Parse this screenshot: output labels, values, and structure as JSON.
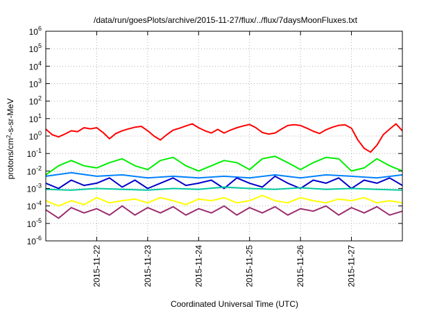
{
  "chart_data": {
    "type": "line",
    "title": "/data/run/goesPlots/archive/2015-11-27/flux/../flux/7daysMoonFluxes.txt",
    "xlabel": "Coordinated Universal Time (UTC)",
    "ylabel": {
      "base": "protons/cm",
      "sup": "2",
      "rest": "-s-sr-MeV"
    },
    "yscale": "log",
    "ylim": [
      1e-06,
      1000000.0
    ],
    "xlim": [
      "2015-11-21T00:00",
      "2015-11-28T00:00"
    ],
    "grid": true,
    "ytick_exponents": [
      -6,
      -5,
      -4,
      -3,
      -2,
      -1,
      0,
      1,
      2,
      3,
      4,
      5,
      6
    ],
    "ytick_base": "10",
    "xticks": [
      {
        "date": "2015-11-22T00:00",
        "label": "2015-11-22"
      },
      {
        "date": "2015-11-23T00:00",
        "label": "2015-11-23"
      },
      {
        "date": "2015-11-24T00:00",
        "label": "2015-11-24"
      },
      {
        "date": "2015-11-25T00:00",
        "label": "2015-11-25"
      },
      {
        "date": "2015-11-26T00:00",
        "label": "2015-11-26"
      },
      {
        "date": "2015-11-27T00:00",
        "label": "2015-11-27"
      }
    ],
    "series": [
      {
        "color": "#ff0000",
        "x": [
          "2015-11-21T00:00",
          "2015-11-21T03:00",
          "2015-11-21T06:00",
          "2015-11-21T09:00",
          "2015-11-21T12:00",
          "2015-11-21T15:00",
          "2015-11-21T18:00",
          "2015-11-21T21:00",
          "2015-11-22T00:00",
          "2015-11-22T03:00",
          "2015-11-22T06:00",
          "2015-11-22T09:00",
          "2015-11-22T12:00",
          "2015-11-22T15:00",
          "2015-11-22T18:00",
          "2015-11-22T21:00",
          "2015-11-23T00:00",
          "2015-11-23T03:00",
          "2015-11-23T06:00",
          "2015-11-23T09:00",
          "2015-11-23T12:00",
          "2015-11-23T15:00",
          "2015-11-23T18:00",
          "2015-11-23T21:00",
          "2015-11-24T00:00",
          "2015-11-24T03:00",
          "2015-11-24T06:00",
          "2015-11-24T09:00",
          "2015-11-24T12:00",
          "2015-11-24T15:00",
          "2015-11-24T18:00",
          "2015-11-24T21:00",
          "2015-11-25T00:00",
          "2015-11-25T03:00",
          "2015-11-25T06:00",
          "2015-11-25T09:00",
          "2015-11-25T12:00",
          "2015-11-25T15:00",
          "2015-11-25T18:00",
          "2015-11-25T21:00",
          "2015-11-26T00:00",
          "2015-11-26T03:00",
          "2015-11-26T06:00",
          "2015-11-26T09:00",
          "2015-11-26T12:00",
          "2015-11-26T15:00",
          "2015-11-26T18:00",
          "2015-11-26T21:00",
          "2015-11-27T00:00",
          "2015-11-27T03:00",
          "2015-11-27T06:00",
          "2015-11-27T09:00",
          "2015-11-27T12:00",
          "2015-11-27T15:00",
          "2015-11-27T18:00",
          "2015-11-27T21:00",
          "2015-11-28T00:00"
        ],
        "values": [
          2.5,
          1.2,
          0.9,
          1.3,
          2.0,
          1.8,
          3.0,
          2.6,
          3.0,
          1.6,
          0.7,
          1.4,
          2.0,
          2.6,
          3.2,
          3.6,
          2.0,
          1.0,
          0.6,
          1.2,
          2.2,
          2.8,
          3.8,
          5.0,
          3.0,
          2.0,
          1.5,
          2.4,
          1.5,
          2.2,
          3.0,
          3.8,
          4.6,
          3.0,
          1.6,
          1.3,
          1.5,
          2.5,
          4.0,
          4.5,
          4.0,
          2.8,
          1.9,
          1.4,
          2.3,
          3.2,
          4.1,
          4.4,
          2.8,
          0.6,
          0.2,
          0.12,
          0.3,
          1.2,
          2.5,
          5.0,
          2.0
        ]
      },
      {
        "color": "#00ee00",
        "x": [
          "2015-11-21T00:00",
          "2015-11-21T06:00",
          "2015-11-21T12:00",
          "2015-11-21T18:00",
          "2015-11-22T00:00",
          "2015-11-22T06:00",
          "2015-11-22T12:00",
          "2015-11-22T18:00",
          "2015-11-23T00:00",
          "2015-11-23T06:00",
          "2015-11-23T12:00",
          "2015-11-23T18:00",
          "2015-11-24T00:00",
          "2015-11-24T06:00",
          "2015-11-24T12:00",
          "2015-11-24T18:00",
          "2015-11-25T00:00",
          "2015-11-25T06:00",
          "2015-11-25T12:00",
          "2015-11-25T18:00",
          "2015-11-26T00:00",
          "2015-11-26T06:00",
          "2015-11-26T12:00",
          "2015-11-26T18:00",
          "2015-11-27T00:00",
          "2015-11-27T06:00",
          "2015-11-27T12:00",
          "2015-11-27T18:00",
          "2015-11-28T00:00"
        ],
        "values": [
          0.006,
          0.02,
          0.04,
          0.02,
          0.015,
          0.03,
          0.05,
          0.02,
          0.012,
          0.04,
          0.06,
          0.02,
          0.01,
          0.02,
          0.04,
          0.03,
          0.012,
          0.05,
          0.07,
          0.03,
          0.012,
          0.03,
          0.06,
          0.05,
          0.01,
          0.015,
          0.05,
          0.02,
          0.01
        ]
      },
      {
        "color": "#0080ff",
        "x": [
          "2015-11-21T00:00",
          "2015-11-21T12:00",
          "2015-11-22T00:00",
          "2015-11-22T12:00",
          "2015-11-23T00:00",
          "2015-11-23T12:00",
          "2015-11-24T00:00",
          "2015-11-24T12:00",
          "2015-11-25T00:00",
          "2015-11-25T12:00",
          "2015-11-26T00:00",
          "2015-11-26T12:00",
          "2015-11-27T00:00",
          "2015-11-27T12:00",
          "2015-11-28T00:00"
        ],
        "values": [
          0.005,
          0.008,
          0.005,
          0.006,
          0.004,
          0.005,
          0.004,
          0.005,
          0.004,
          0.006,
          0.004,
          0.006,
          0.005,
          0.004,
          0.006
        ]
      },
      {
        "color": "#0000cc",
        "x": [
          "2015-11-21T00:00",
          "2015-11-21T06:00",
          "2015-11-21T12:00",
          "2015-11-21T18:00",
          "2015-11-22T00:00",
          "2015-11-22T06:00",
          "2015-11-22T12:00",
          "2015-11-22T18:00",
          "2015-11-23T00:00",
          "2015-11-23T06:00",
          "2015-11-23T12:00",
          "2015-11-23T18:00",
          "2015-11-24T00:00",
          "2015-11-24T06:00",
          "2015-11-24T12:00",
          "2015-11-24T18:00",
          "2015-11-25T00:00",
          "2015-11-25T06:00",
          "2015-11-25T12:00",
          "2015-11-25T18:00",
          "2015-11-26T00:00",
          "2015-11-26T06:00",
          "2015-11-26T12:00",
          "2015-11-26T18:00",
          "2015-11-27T00:00",
          "2015-11-27T06:00",
          "2015-11-27T12:00",
          "2015-11-27T18:00",
          "2015-11-28T00:00"
        ],
        "values": [
          0.002,
          0.001,
          0.003,
          0.0015,
          0.002,
          0.004,
          0.0012,
          0.003,
          0.001,
          0.002,
          0.004,
          0.0015,
          0.002,
          0.003,
          0.001,
          0.004,
          0.002,
          0.0012,
          0.005,
          0.002,
          0.001,
          0.003,
          0.002,
          0.004,
          0.001,
          0.003,
          0.002,
          0.004,
          0.0015
        ]
      },
      {
        "color": "#00c8a0",
        "x": [
          "2015-11-21T00:00",
          "2015-11-21T12:00",
          "2015-11-22T00:00",
          "2015-11-22T12:00",
          "2015-11-23T00:00",
          "2015-11-23T12:00",
          "2015-11-24T00:00",
          "2015-11-24T12:00",
          "2015-11-25T00:00",
          "2015-11-25T12:00",
          "2015-11-26T00:00",
          "2015-11-26T12:00",
          "2015-11-27T00:00",
          "2015-11-27T12:00",
          "2015-11-28T00:00"
        ],
        "values": [
          0.0009,
          0.0008,
          0.001,
          0.0009,
          0.0008,
          0.001,
          0.0009,
          0.0012,
          0.001,
          0.0009,
          0.0011,
          0.0009,
          0.001,
          0.0009,
          0.0008
        ]
      },
      {
        "color": "#ffff00",
        "x": [
          "2015-11-21T00:00",
          "2015-11-21T06:00",
          "2015-11-21T12:00",
          "2015-11-21T18:00",
          "2015-11-22T00:00",
          "2015-11-22T06:00",
          "2015-11-22T12:00",
          "2015-11-22T18:00",
          "2015-11-23T00:00",
          "2015-11-23T06:00",
          "2015-11-23T12:00",
          "2015-11-23T18:00",
          "2015-11-24T00:00",
          "2015-11-24T06:00",
          "2015-11-24T12:00",
          "2015-11-24T18:00",
          "2015-11-25T00:00",
          "2015-11-25T06:00",
          "2015-11-25T12:00",
          "2015-11-25T18:00",
          "2015-11-26T00:00",
          "2015-11-26T06:00",
          "2015-11-26T12:00",
          "2015-11-26T18:00",
          "2015-11-27T00:00",
          "2015-11-27T06:00",
          "2015-11-27T12:00",
          "2015-11-27T18:00",
          "2015-11-28T00:00"
        ],
        "values": [
          0.0002,
          0.0001,
          0.0002,
          0.00012,
          0.0003,
          0.00015,
          0.0002,
          0.00025,
          0.00015,
          0.0003,
          0.0002,
          0.00012,
          0.00025,
          0.0002,
          0.0003,
          0.00015,
          0.0002,
          0.0004,
          0.0002,
          0.00015,
          0.0003,
          0.0002,
          0.00015,
          0.00025,
          0.0002,
          0.0003,
          0.00015,
          0.0002,
          0.00015
        ]
      },
      {
        "color": "#9b2d6e",
        "x": [
          "2015-11-21T00:00",
          "2015-11-21T06:00",
          "2015-11-21T12:00",
          "2015-11-21T18:00",
          "2015-11-22T00:00",
          "2015-11-22T06:00",
          "2015-11-22T12:00",
          "2015-11-22T18:00",
          "2015-11-23T00:00",
          "2015-11-23T06:00",
          "2015-11-23T12:00",
          "2015-11-23T18:00",
          "2015-11-24T00:00",
          "2015-11-24T06:00",
          "2015-11-24T12:00",
          "2015-11-24T18:00",
          "2015-11-25T00:00",
          "2015-11-25T06:00",
          "2015-11-25T12:00",
          "2015-11-25T18:00",
          "2015-11-26T00:00",
          "2015-11-26T06:00",
          "2015-11-26T12:00",
          "2015-11-26T18:00",
          "2015-11-27T00:00",
          "2015-11-27T06:00",
          "2015-11-27T12:00",
          "2015-11-27T18:00",
          "2015-11-28T00:00"
        ],
        "values": [
          6e-05,
          2e-05,
          8e-05,
          4e-05,
          7e-05,
          3e-05,
          0.0001,
          3e-05,
          8e-05,
          4e-05,
          9e-05,
          3e-05,
          7e-05,
          4e-05,
          0.0001,
          3e-05,
          8e-05,
          4e-05,
          9e-05,
          3e-05,
          7e-05,
          5e-05,
          0.0001,
          3e-05,
          8e-05,
          4e-05,
          9e-05,
          3e-05,
          5e-05
        ]
      }
    ]
  }
}
